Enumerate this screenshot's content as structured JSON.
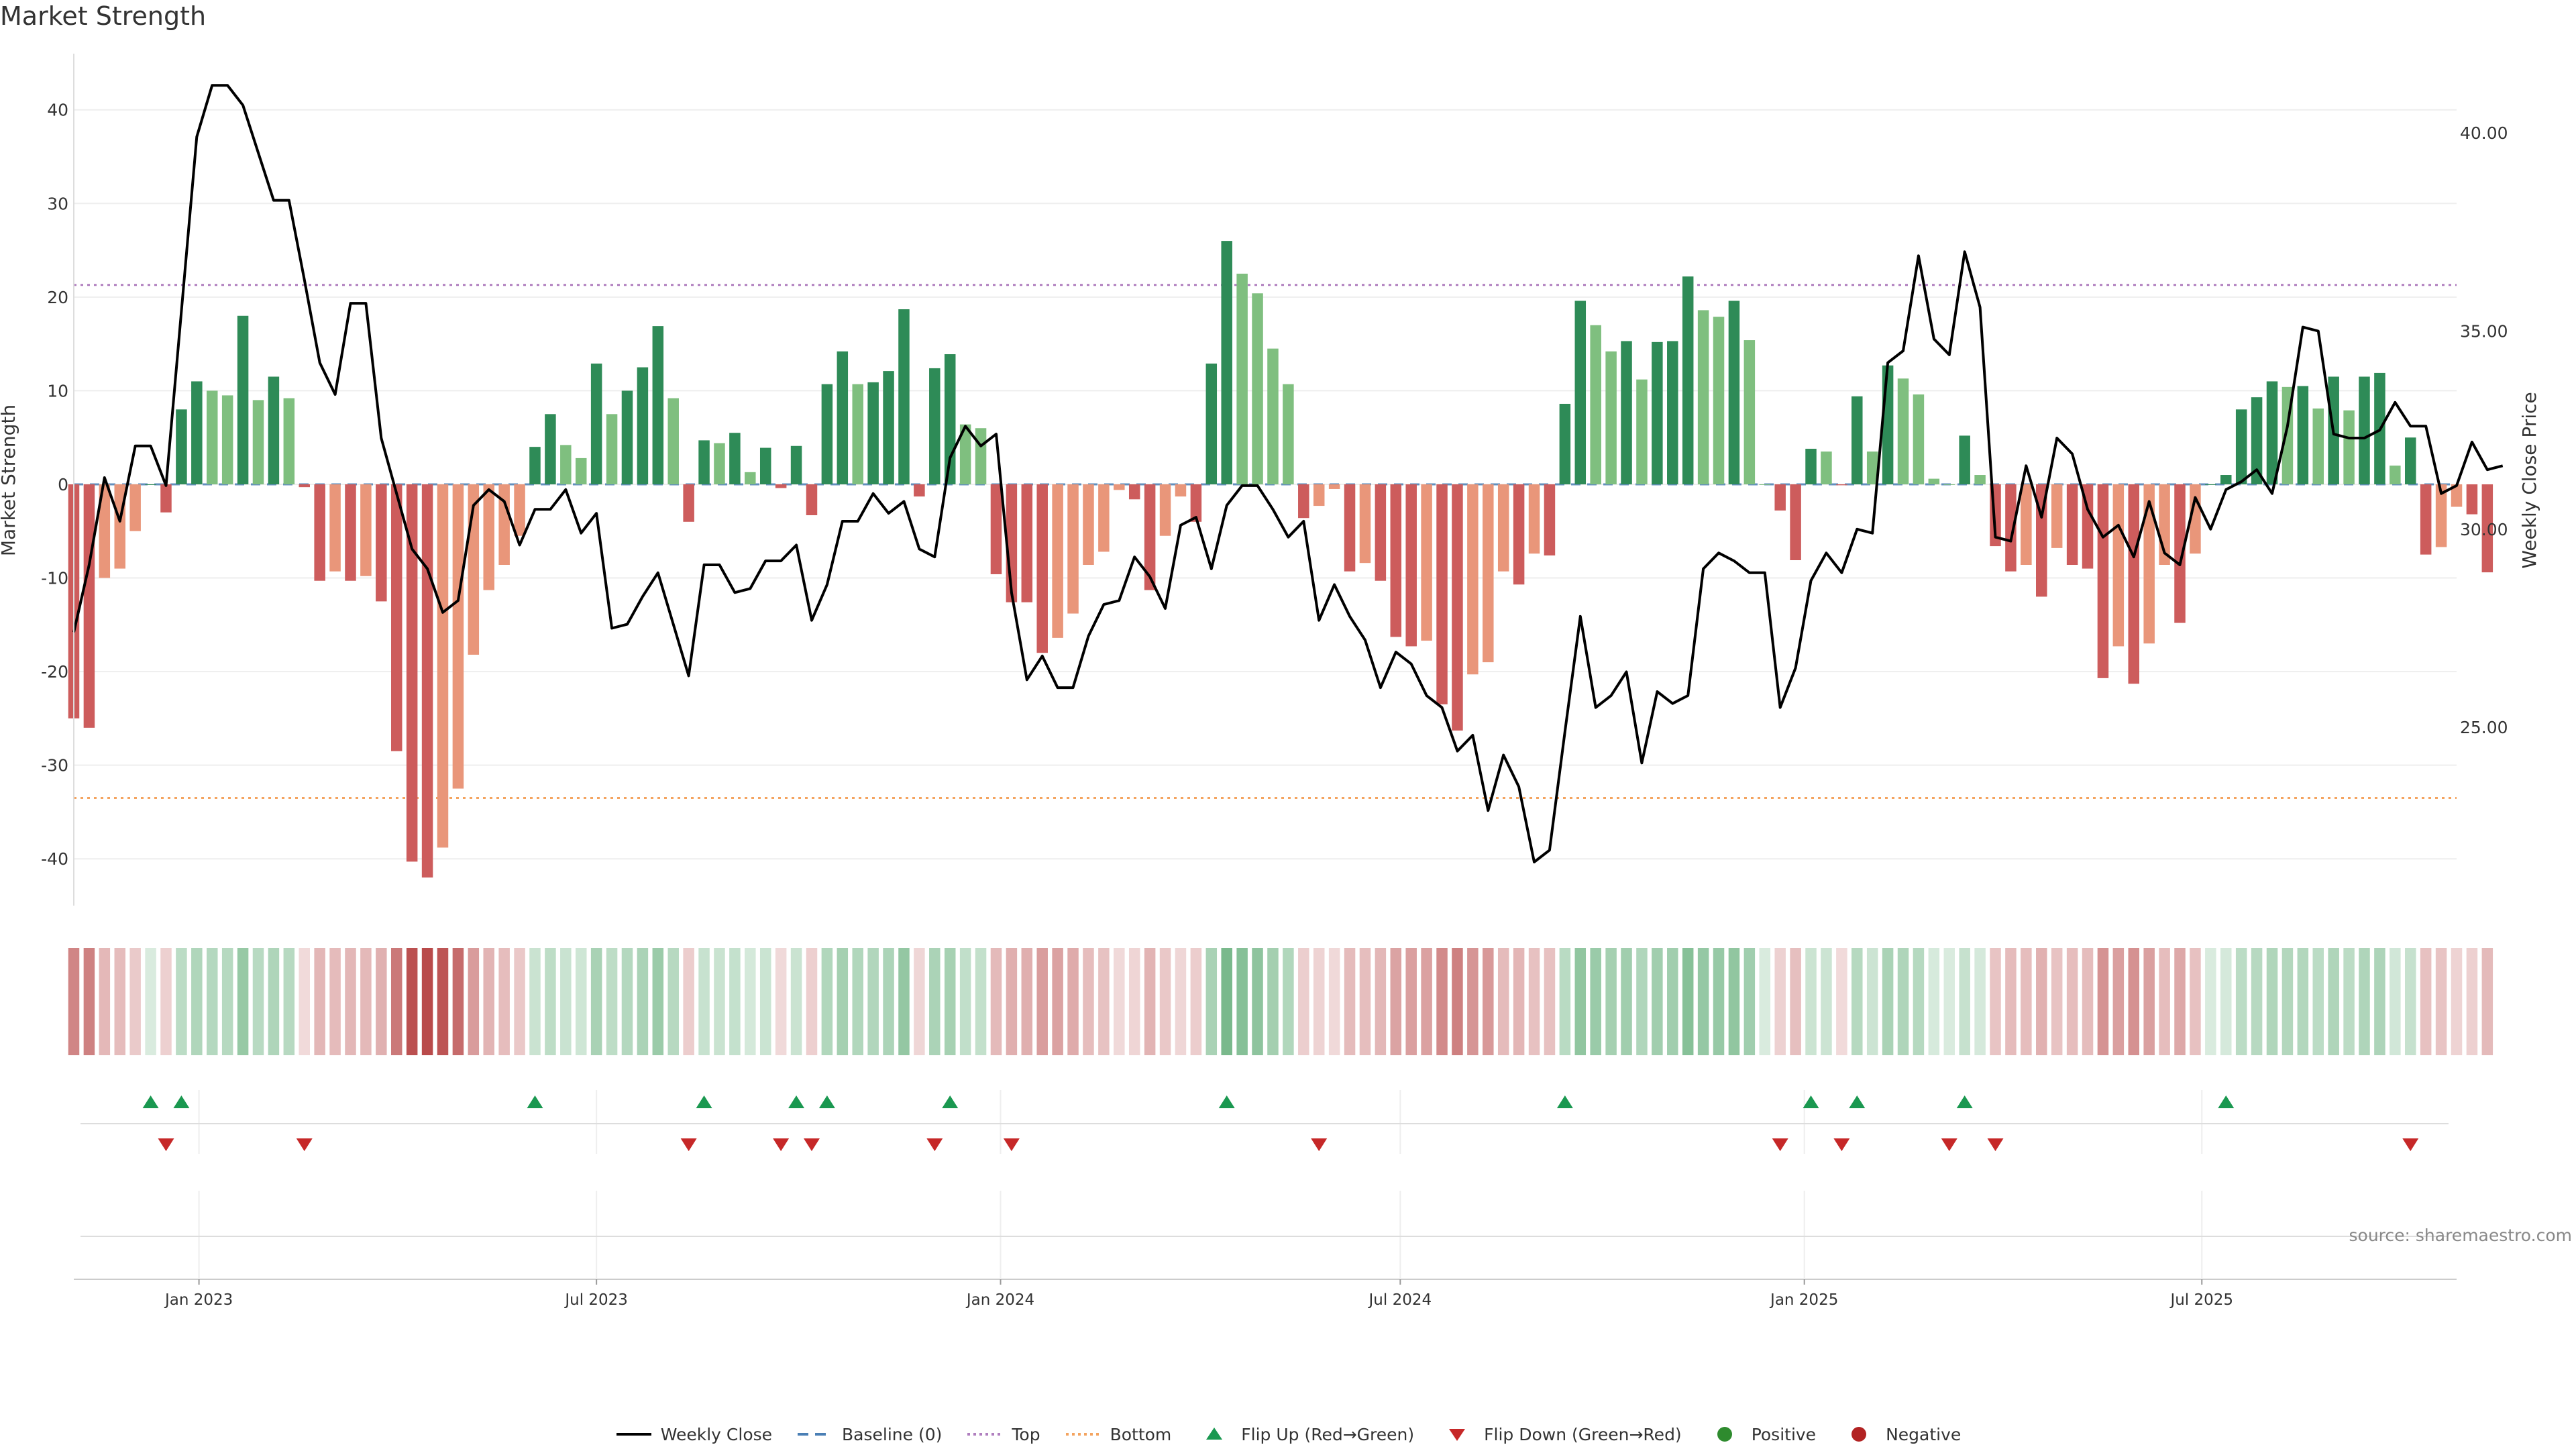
{
  "chart_data": {
    "type": "bar",
    "title": "Market Strength",
    "ylabel": "Market Strength",
    "y2label": "Weekly Close Price",
    "ylim": [
      -45,
      46
    ],
    "y2lim": [
      20.5,
      42.0
    ],
    "yticks": [
      -40,
      -30,
      -20,
      -10,
      0,
      10,
      20,
      30,
      40
    ],
    "y2ticks": [
      "25.00",
      "30.00",
      "35.00",
      "40.00"
    ],
    "y2tick_values": [
      25,
      30,
      35,
      40
    ],
    "xrange": [
      "2022-11-05",
      "2025-10-25"
    ],
    "xticks": [
      "Jan 2023",
      "Jul 2023",
      "Jan 2024",
      "Jul 2024",
      "Jan 2025",
      "Jul 2025"
    ],
    "xtick_dates": [
      "2023-01-01",
      "2023-07-01",
      "2024-01-01",
      "2024-07-01",
      "2025-01-01",
      "2025-07-01"
    ],
    "start_week": "2022-11-05",
    "reference_lines": {
      "top": 21.3,
      "bottom": -33.5,
      "baseline": 0
    },
    "grid": true,
    "legend_position": "bottom",
    "colors": {
      "strong_positive": "#2e8b57",
      "weak_positive": "#7fbf7f",
      "strong_negative": "#cd5c5c",
      "weak_negative": "#e9967a",
      "close_line": "#000000",
      "baseline": "#4a7fb5",
      "top": "#b07fbf",
      "bottom": "#f4a460",
      "flip_up": "#1a9850",
      "flip_down": "#c62828"
    },
    "series": [
      {
        "name": "Market Strength",
        "values": [
          -25,
          -26,
          -10,
          -9,
          -5,
          0,
          -3,
          8,
          11,
          10,
          9.5,
          18,
          9,
          11.5,
          9.2,
          -0.3,
          -10.3,
          -9.3,
          -10.3,
          -9.8,
          -12.5,
          -28.5,
          -40.3,
          -42,
          -38.8,
          -32.5,
          -18.2,
          -11.3,
          -8.6,
          -5.5,
          4,
          7.5,
          4.2,
          2.8,
          12.9,
          7.5,
          10,
          12.5,
          16.9,
          9.2,
          -4,
          4.7,
          4.4,
          5.5,
          1.3,
          3.9,
          -0.4,
          4.1,
          -3.3,
          10.7,
          14.2,
          10.7,
          10.9,
          12.1,
          18.7,
          -1.3,
          12.4,
          13.9,
          6.4,
          6,
          -9.6,
          -12.6,
          -12.6,
          -18,
          -16.4,
          -13.8,
          -8.6,
          -7.2,
          -0.6,
          -1.6,
          -11.3,
          -5.5,
          -1.3,
          -4,
          12.9,
          26,
          22.5,
          20.4,
          14.5,
          10.7,
          -3.6,
          -2.3,
          -0.5,
          -9.3,
          -8.4,
          -10.3,
          -16.3,
          -17.3,
          -16.7,
          -23.5,
          -26.3,
          -20.3,
          -19,
          -9.3,
          -10.7,
          -7.4,
          -7.6,
          8.6,
          19.6,
          17,
          14.2,
          15.3,
          11.2,
          15.2,
          15.3,
          22.2,
          18.6,
          17.9,
          19.6,
          15.4,
          0,
          -2.8,
          -8.1,
          3.8,
          3.5,
          -0.1,
          9.4,
          3.5,
          12.7,
          11.3,
          9.6,
          0.6,
          0,
          5.2,
          1,
          -6.6,
          -9.3,
          -8.6,
          -12,
          -6.8,
          -8.6,
          -9,
          -20.7,
          -17.3,
          -21.3,
          -17,
          -8.6,
          -14.8,
          -7.4,
          0,
          1,
          8,
          9.3,
          11,
          10.4,
          10.5,
          8.1,
          11.5,
          7.9,
          11.5,
          11.9,
          2,
          5,
          -7.5,
          -6.7,
          -2.4,
          -3.2,
          -9.4
        ]
      },
      {
        "name": "Weekly Close",
        "values": [
          27.4,
          29.1,
          31.3,
          30.2,
          32.1,
          32.1,
          31.1,
          35.5,
          39.9,
          41.2,
          41.2,
          40.7,
          39.5,
          38.3,
          38.3,
          36.3,
          34.2,
          33.4,
          35.7,
          35.7,
          32.3,
          30.9,
          29.5,
          29,
          27.9,
          28.2,
          30.6,
          31,
          30.7,
          29.6,
          30.5,
          30.5,
          31,
          29.9,
          30.4,
          27.5,
          27.6,
          28.3,
          28.9,
          27.6,
          26.3,
          29.1,
          29.1,
          28.4,
          28.5,
          29.2,
          29.2,
          29.6,
          27.7,
          28.6,
          30.2,
          30.2,
          30.9,
          30.4,
          30.7,
          29.5,
          29.3,
          31.8,
          32.6,
          32.1,
          32.4,
          28.4,
          26.2,
          26.8,
          26,
          26,
          27.3,
          28.1,
          28.2,
          29.3,
          28.8,
          28,
          30.1,
          30.3,
          29,
          30.6,
          31.1,
          31.1,
          30.5,
          29.8,
          30.2,
          27.7,
          28.6,
          27.8,
          27.2,
          26,
          26.9,
          26.6,
          25.8,
          25.5,
          24.4,
          24.8,
          22.9,
          24.3,
          23.5,
          21.6,
          21.9,
          24.9,
          27.8,
          25.5,
          25.8,
          26.4,
          24.1,
          25.9,
          25.6,
          25.8,
          29,
          29.4,
          29.2,
          28.9,
          28.9,
          25.5,
          26.5,
          28.7,
          29.4,
          28.9,
          30,
          29.9,
          34.2,
          34.5,
          36.9,
          34.8,
          34.4,
          37,
          35.6,
          29.8,
          29.7,
          31.6,
          30.3,
          32.3,
          31.9,
          30.5,
          29.8,
          30.1,
          29.3,
          30.7,
          29.4,
          29.1,
          30.8,
          30,
          31,
          31.2,
          31.5,
          30.9,
          32.6,
          35.1,
          35,
          32.4,
          32.3,
          32.3,
          32.5,
          33.2,
          32.6,
          32.6,
          30.9,
          31.1,
          32.2,
          31.5,
          31.6
        ]
      }
    ],
    "flip_up_weeks": [
      5,
      7,
      30,
      41,
      47,
      49,
      57,
      75,
      97,
      113,
      116,
      123,
      140
    ],
    "flip_down_weeks": [
      6,
      15,
      40,
      46,
      48,
      56,
      61,
      81,
      111,
      115,
      122,
      125,
      152
    ],
    "source": "source: sharemaestro.com",
    "legend": [
      {
        "label": "Weekly Close",
        "kind": "solid-line",
        "color": "#000000"
      },
      {
        "label": "Baseline (0)",
        "kind": "dashed-line",
        "color": "#4a7fb5"
      },
      {
        "label": "Top",
        "kind": "dotted-line",
        "color": "#b07fbf"
      },
      {
        "label": "Bottom",
        "kind": "dotted-line",
        "color": "#f4a460"
      },
      {
        "label": "Flip Up (Red→Green)",
        "kind": "triangle-up",
        "color": "#1a9850"
      },
      {
        "label": "Flip Down (Green→Red)",
        "kind": "triangle-down",
        "color": "#c62828"
      },
      {
        "label": "Positive",
        "kind": "dot",
        "color": "#2e8b2e"
      },
      {
        "label": "Negative",
        "kind": "dot",
        "color": "#b22222"
      }
    ]
  }
}
